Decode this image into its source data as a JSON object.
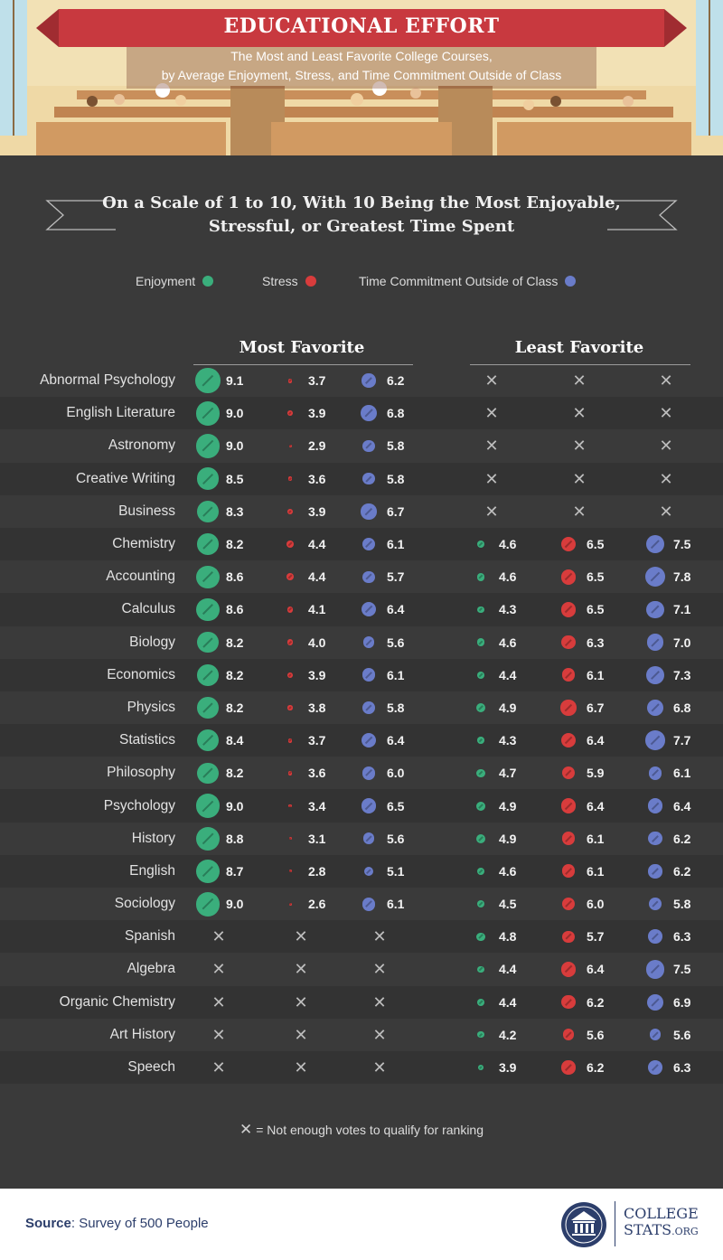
{
  "header": {
    "title": "EDUCATIONAL EFFORT",
    "subtitle_line1": "The Most and Least Favorite College Courses,",
    "subtitle_line2": "by Average Enjoyment, Stress, and Time Commitment Outside of Class"
  },
  "scale_heading_line1": "On a Scale of 1 to 10, With 10 Being the Most Enjoyable,",
  "scale_heading_line2": "Stressful, or Greatest Time Spent",
  "legend": {
    "enjoyment": "Enjoyment",
    "stress": "Stress",
    "time": "Time Commitment Outside of Class"
  },
  "colors": {
    "enjoyment": "#3aae7c",
    "stress": "#d83c3c",
    "time": "#6a7cc9",
    "background": "#3a3a3a",
    "brand": "#2c3e6b"
  },
  "chart_data": {
    "type": "table",
    "groups": [
      "Most Favorite",
      "Least Favorite"
    ],
    "metrics": [
      "Enjoyment",
      "Stress",
      "Time Commitment Outside of Class"
    ],
    "scale": [
      1,
      10
    ],
    "rows": [
      {
        "course": "Abnormal Psychology",
        "most": [
          9.1,
          3.7,
          6.2
        ],
        "least": null
      },
      {
        "course": "English Literature",
        "most": [
          9.0,
          3.9,
          6.8
        ],
        "least": null
      },
      {
        "course": "Astronomy",
        "most": [
          9.0,
          2.9,
          5.8
        ],
        "least": null
      },
      {
        "course": "Creative Writing",
        "most": [
          8.5,
          3.6,
          5.8
        ],
        "least": null
      },
      {
        "course": "Business",
        "most": [
          8.3,
          3.9,
          6.7
        ],
        "least": null
      },
      {
        "course": "Chemistry",
        "most": [
          8.2,
          4.4,
          6.1
        ],
        "least": [
          4.6,
          6.5,
          7.5
        ]
      },
      {
        "course": "Accounting",
        "most": [
          8.6,
          4.4,
          5.7
        ],
        "least": [
          4.6,
          6.5,
          7.8
        ]
      },
      {
        "course": "Calculus",
        "most": [
          8.6,
          4.1,
          6.4
        ],
        "least": [
          4.3,
          6.5,
          7.1
        ]
      },
      {
        "course": "Biology",
        "most": [
          8.2,
          4.0,
          5.6
        ],
        "least": [
          4.6,
          6.3,
          7.0
        ]
      },
      {
        "course": "Economics",
        "most": [
          8.2,
          3.9,
          6.1
        ],
        "least": [
          4.4,
          6.1,
          7.3
        ]
      },
      {
        "course": "Physics",
        "most": [
          8.2,
          3.8,
          5.8
        ],
        "least": [
          4.9,
          6.7,
          6.8
        ]
      },
      {
        "course": "Statistics",
        "most": [
          8.4,
          3.7,
          6.4
        ],
        "least": [
          4.3,
          6.4,
          7.7
        ]
      },
      {
        "course": "Philosophy",
        "most": [
          8.2,
          3.6,
          6.0
        ],
        "least": [
          4.7,
          5.9,
          6.1
        ]
      },
      {
        "course": "Psychology",
        "most": [
          9.0,
          3.4,
          6.5
        ],
        "least": [
          4.9,
          6.4,
          6.4
        ]
      },
      {
        "course": "History",
        "most": [
          8.8,
          3.1,
          5.6
        ],
        "least": [
          4.9,
          6.1,
          6.2
        ]
      },
      {
        "course": "English",
        "most": [
          8.7,
          2.8,
          5.1
        ],
        "least": [
          4.6,
          6.1,
          6.2
        ]
      },
      {
        "course": "Sociology",
        "most": [
          9.0,
          2.6,
          6.1
        ],
        "least": [
          4.5,
          6.0,
          5.8
        ]
      },
      {
        "course": "Spanish",
        "most": null,
        "least": [
          4.8,
          5.7,
          6.3
        ]
      },
      {
        "course": "Algebra",
        "most": null,
        "least": [
          4.4,
          6.4,
          7.5
        ]
      },
      {
        "course": "Organic Chemistry",
        "most": null,
        "least": [
          4.4,
          6.2,
          6.9
        ]
      },
      {
        "course": "Art History",
        "most": null,
        "least": [
          4.2,
          5.6,
          5.6
        ]
      },
      {
        "course": "Speech",
        "most": null,
        "least": [
          3.9,
          6.2,
          6.3
        ]
      }
    ]
  },
  "footnote": "= Not enough votes to qualify for ranking",
  "source": {
    "label": "Source",
    "text": ": Survey of 500 People"
  },
  "logo": {
    "line1": "COLLEGE",
    "line2": "STATS",
    "line2_suffix": ".ORG"
  }
}
